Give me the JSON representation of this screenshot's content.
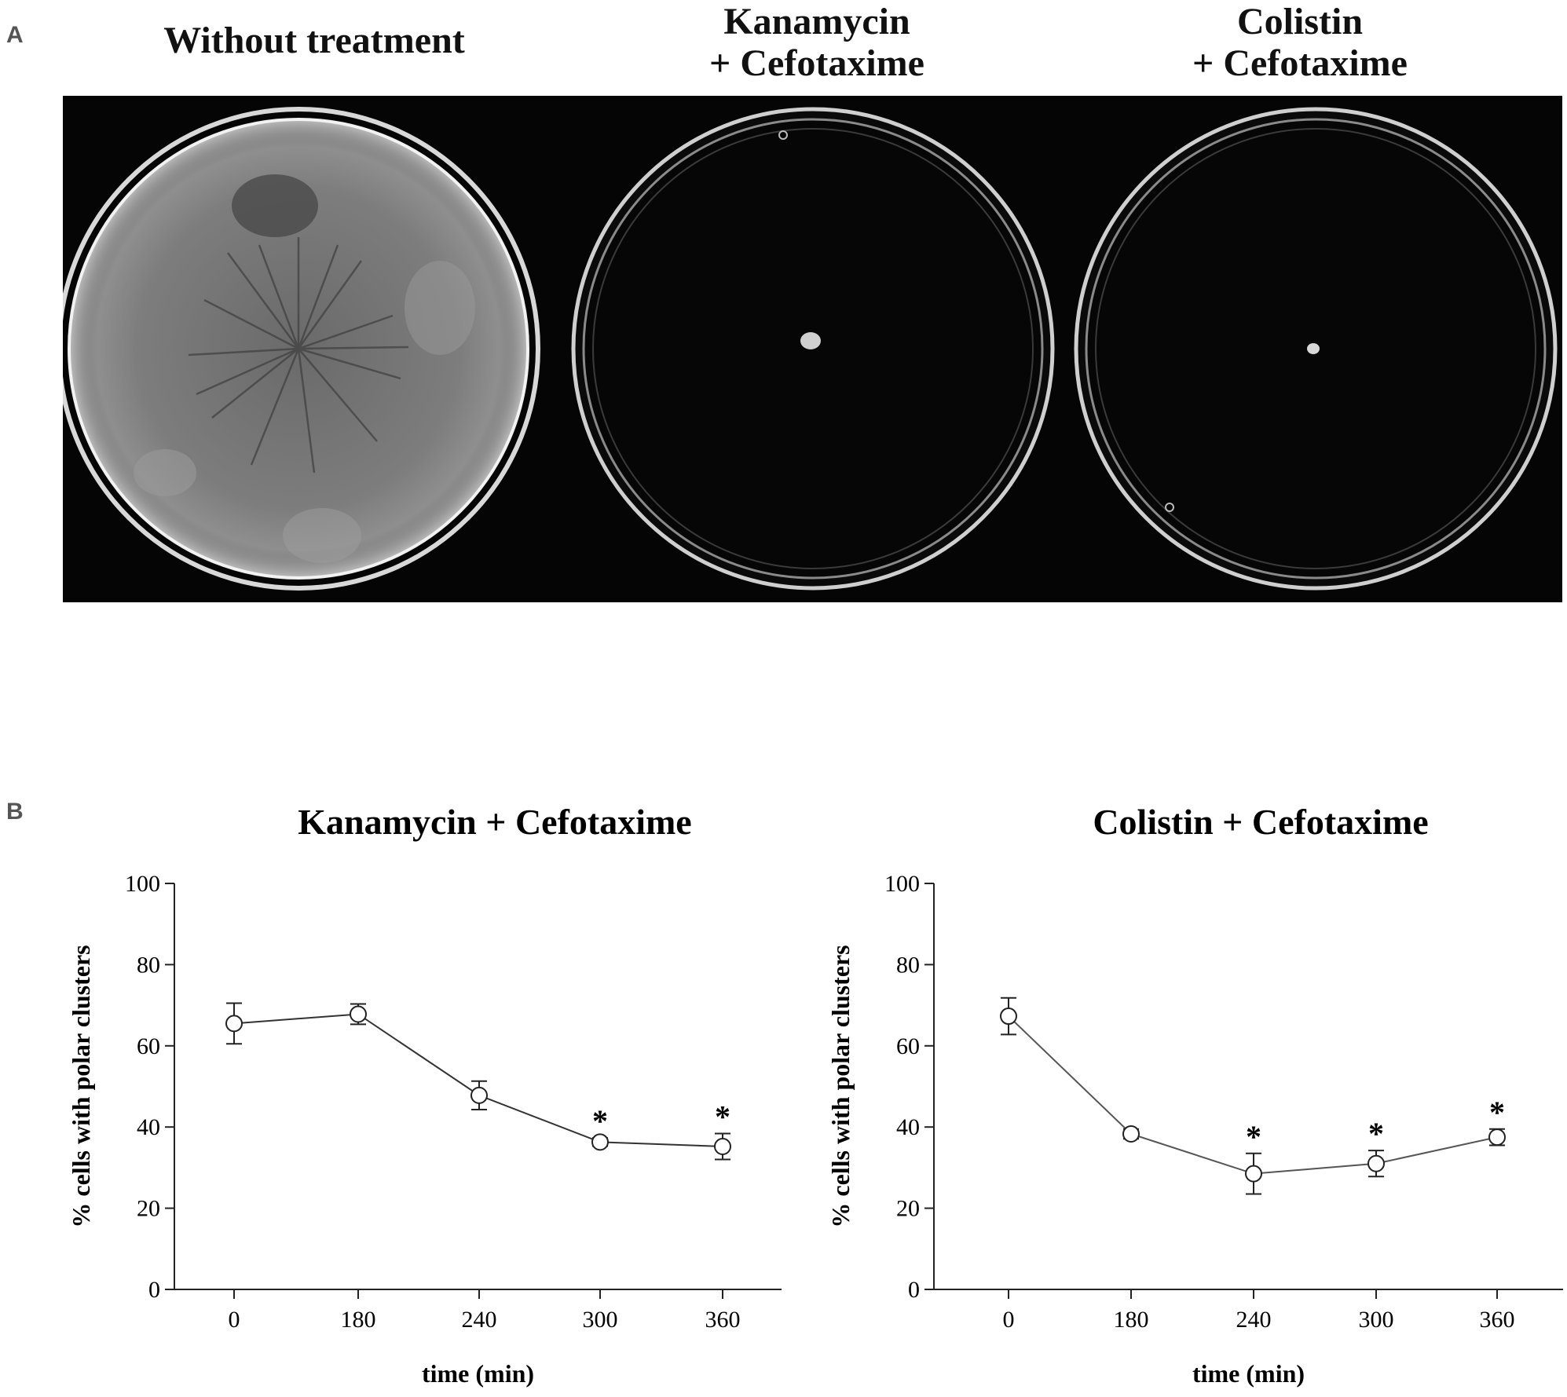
{
  "panel_a": {
    "letter": "A",
    "plates": [
      {
        "label": "Without treatment",
        "state": "overgrown"
      },
      {
        "label": "Kanamycin\n+ Cefotaxime",
        "state": "clear"
      },
      {
        "label": "Colistin\n+ Cefotaxime",
        "state": "clear"
      }
    ]
  },
  "panel_b": {
    "letter": "B"
  },
  "chart_data": [
    {
      "type": "line",
      "title": "Kanamycin + Cefotaxime",
      "xlabel": "time (min)",
      "ylabel": "% cells with polar clusters",
      "categories": [
        "0",
        "180",
        "240",
        "300",
        "360"
      ],
      "values": [
        65.5,
        67.8,
        47.8,
        36.3,
        35.2
      ],
      "errors": [
        5.0,
        2.5,
        3.5,
        1.0,
        3.2
      ],
      "significance": [
        "",
        "",
        "",
        "*",
        "*"
      ],
      "ylim": [
        0,
        100
      ],
      "yticks": [
        0,
        20,
        40,
        60,
        80,
        100
      ],
      "line_color": "#333333"
    },
    {
      "type": "line",
      "title": "Colistin + Cefotaxime",
      "xlabel": "time (min)",
      "ylabel": "% cells with polar clusters",
      "categories": [
        "0",
        "180",
        "240",
        "300",
        "360"
      ],
      "values": [
        67.3,
        38.3,
        28.5,
        31.0,
        37.5
      ],
      "errors": [
        4.5,
        1.2,
        5.0,
        3.2,
        2.0
      ],
      "significance": [
        "",
        "",
        "*",
        "*",
        "*"
      ],
      "ylim": [
        0,
        100
      ],
      "yticks": [
        0,
        20,
        40,
        60,
        80,
        100
      ],
      "line_color": "#555555"
    }
  ]
}
